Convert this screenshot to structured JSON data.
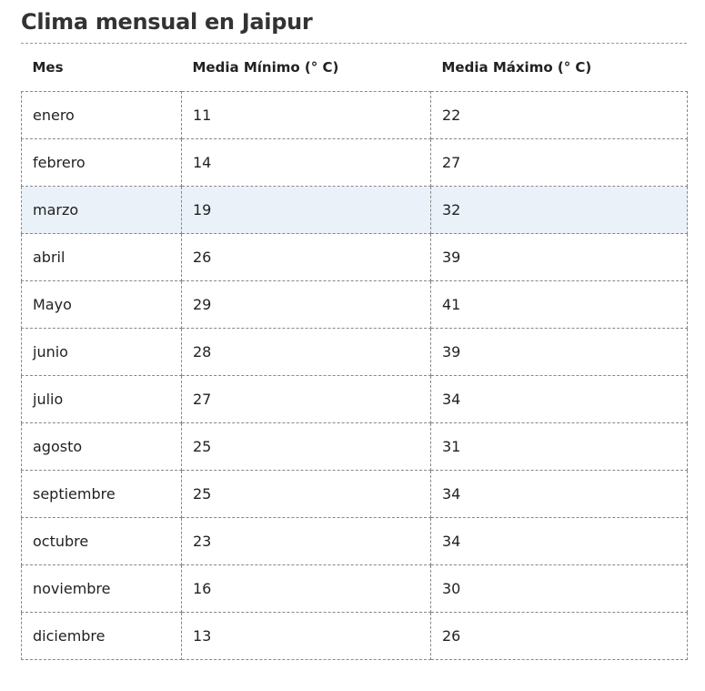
{
  "header": {
    "title": "Clima mensual en Jaipur"
  },
  "table": {
    "columns": [
      "Mes",
      "Media Mínimo (° C)",
      "Media Máximo (° C)"
    ],
    "highlighted_row": 2,
    "rows": [
      [
        "enero",
        11,
        22
      ],
      [
        "febrero",
        14,
        27
      ],
      [
        "marzo",
        19,
        32
      ],
      [
        "abril",
        26,
        39
      ],
      [
        "Mayo",
        29,
        41
      ],
      [
        "junio",
        28,
        39
      ],
      [
        "julio",
        27,
        34
      ],
      [
        "agosto",
        25,
        31
      ],
      [
        "septiembre",
        25,
        34
      ],
      [
        "octubre",
        23,
        34
      ],
      [
        "noviembre",
        16,
        30
      ],
      [
        "diciembre",
        13,
        26
      ]
    ]
  }
}
